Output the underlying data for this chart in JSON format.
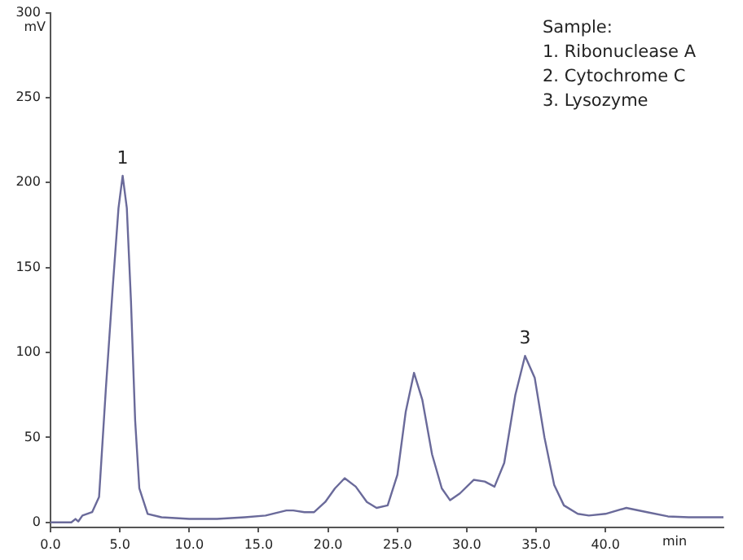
{
  "chart_data": {
    "type": "line",
    "xlabel": "min",
    "ylabel": "mV",
    "xlim": [
      0,
      48.5
    ],
    "ylim": [
      -3,
      300
    ],
    "xticks": [
      {
        "value": 0,
        "label": "0.0"
      },
      {
        "value": 5,
        "label": "5.0"
      },
      {
        "value": 10,
        "label": "10.0"
      },
      {
        "value": 15,
        "label": "15.0"
      },
      {
        "value": 20,
        "label": "20.0"
      },
      {
        "value": 25,
        "label": "25.0"
      },
      {
        "value": 30,
        "label": "30.0"
      },
      {
        "value": 35,
        "label": "35.0"
      },
      {
        "value": 40,
        "label": "40.0"
      }
    ],
    "yticks": [
      0,
      50,
      100,
      150,
      200,
      250,
      300
    ],
    "grid": false,
    "legend": false,
    "marker": "none",
    "line_style": "solid",
    "series": [
      {
        "color": "#6a6a9a",
        "x": [
          0,
          1.5,
          1.8,
          2.0,
          2.3,
          3.0,
          3.5,
          4.0,
          4.5,
          4.9,
          5.2,
          5.5,
          5.8,
          6.1,
          6.4,
          7.0,
          8.0,
          10.0,
          12.0,
          14.0,
          15.5,
          17.0,
          17.5,
          18.3,
          19.0,
          19.8,
          20.5,
          21.2,
          22.0,
          22.8,
          23.5,
          24.3,
          25.0,
          25.6,
          26.2,
          26.8,
          27.5,
          28.2,
          28.8,
          29.5,
          30.5,
          31.3,
          32.0,
          32.7,
          33.5,
          34.2,
          34.9,
          35.6,
          36.3,
          37.0,
          38.0,
          38.8,
          40.0,
          41.5,
          43.0,
          44.5,
          46.0,
          48.5
        ],
        "values": [
          0,
          0,
          2,
          0.5,
          4,
          6,
          15,
          80,
          140,
          185,
          204,
          185,
          130,
          60,
          20,
          5,
          3,
          2,
          2,
          3,
          4,
          7,
          7,
          6,
          6,
          12,
          20,
          26,
          21,
          12,
          8.5,
          10,
          28,
          65,
          88,
          72,
          40,
          20,
          13,
          17,
          25,
          24,
          21,
          35,
          75,
          98,
          85,
          50,
          22,
          10,
          5,
          4,
          5,
          8.5,
          6,
          3.5,
          3,
          3
        ]
      }
    ],
    "annotations": [
      {
        "text": "1",
        "x": 5.2,
        "y": 204
      },
      {
        "text": "3",
        "x": 34.2,
        "y": 98
      },
      "Sample:",
      "1. Ribonuclease A",
      "2. Cytochrome C",
      "3. Lysozyme"
    ]
  }
}
